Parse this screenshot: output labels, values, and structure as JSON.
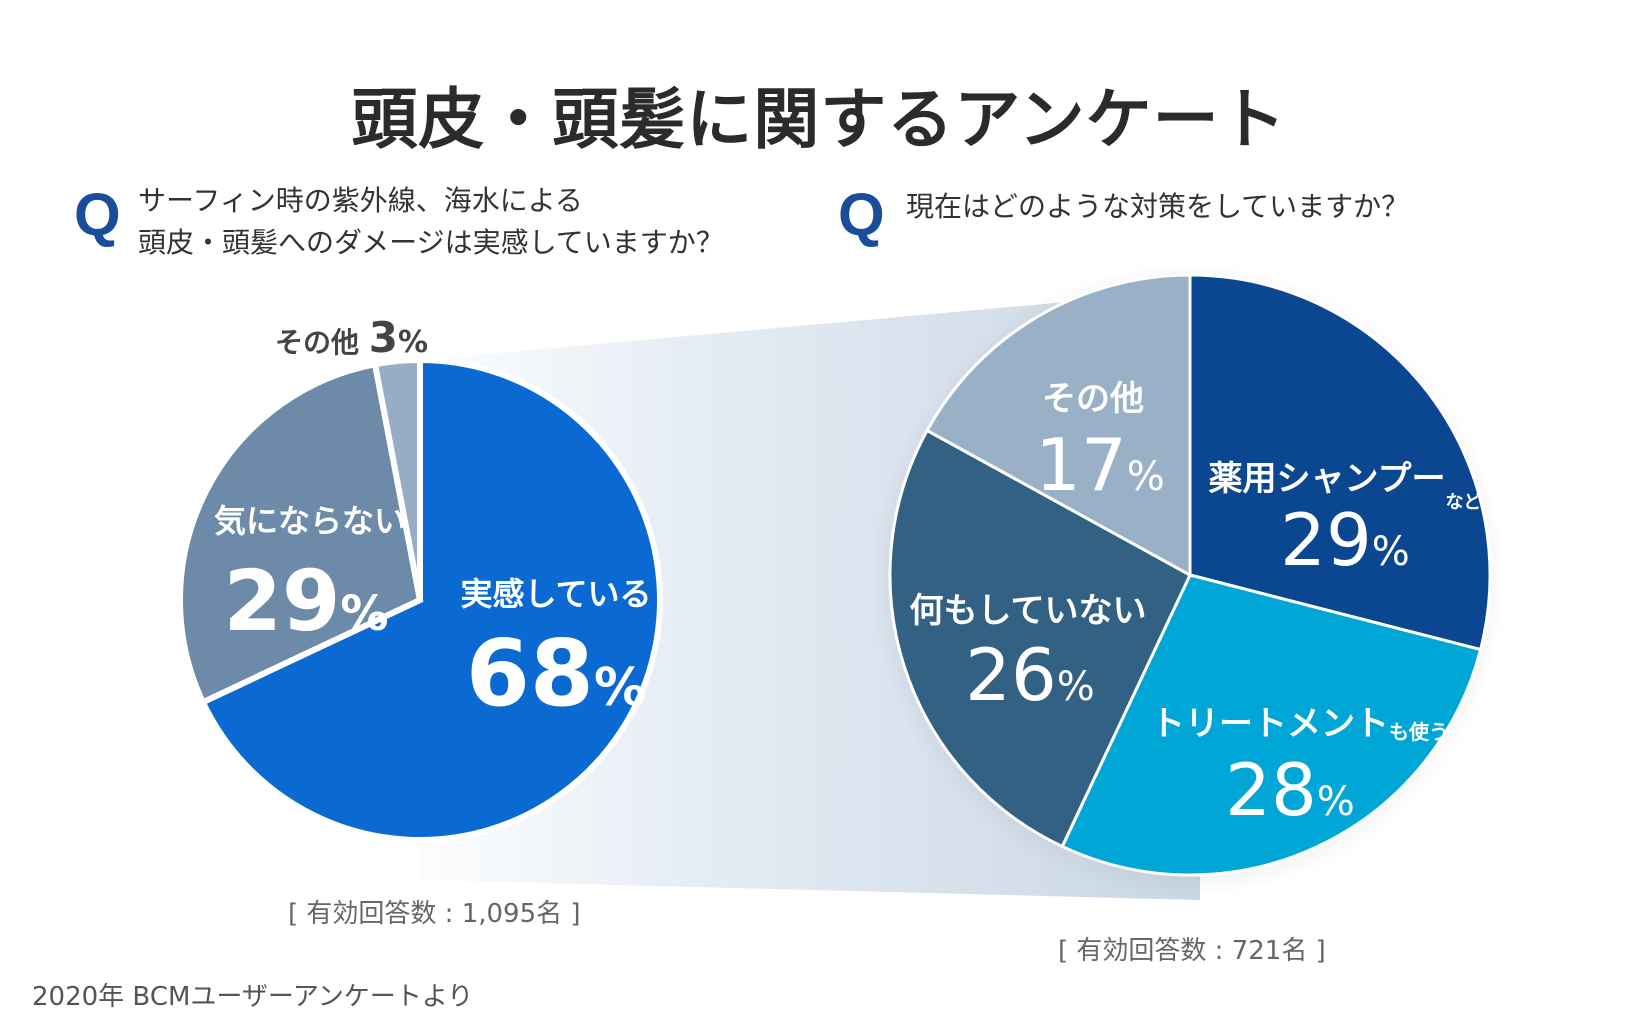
{
  "title": "頭皮・頭髪に関するアンケート",
  "q_mark": "Q",
  "q1": {
    "line1": "サーフィン時の紫外線、海水による",
    "line2": "頭皮・頭髪へのダメージは実感していますか？"
  },
  "q2": {
    "text": "現在はどのような対策をしていますか？"
  },
  "percent_sign": "%",
  "chart_data": [
    {
      "type": "pie",
      "title": "",
      "slices": [
        {
          "label": "実感している",
          "value": 68,
          "color": "#0a6ad2"
        },
        {
          "label": "気にならない",
          "value": 29,
          "color": "#6d8aa8"
        },
        {
          "label": "その他",
          "value": 3,
          "color": "#97adc4"
        }
      ],
      "note": "[ 有効回答数 : 1,095名 ]"
    },
    {
      "type": "pie",
      "title": "",
      "slices": [
        {
          "label": "薬用シャンプー",
          "suffix": "など",
          "value": 29,
          "color": "#0b4791"
        },
        {
          "label": "トリートメント",
          "suffix": "も使う",
          "value": 28,
          "color": "#00a6d6"
        },
        {
          "label": "何もしていない",
          "suffix": "",
          "value": 26,
          "color": "#326184"
        },
        {
          "label": "その他",
          "suffix": "",
          "value": 17,
          "color": "#9ab0c6"
        }
      ],
      "note": "[ 有効回答数 : 721名 ]"
    }
  ],
  "source": "2020年 BCMユーザーアンケートより"
}
